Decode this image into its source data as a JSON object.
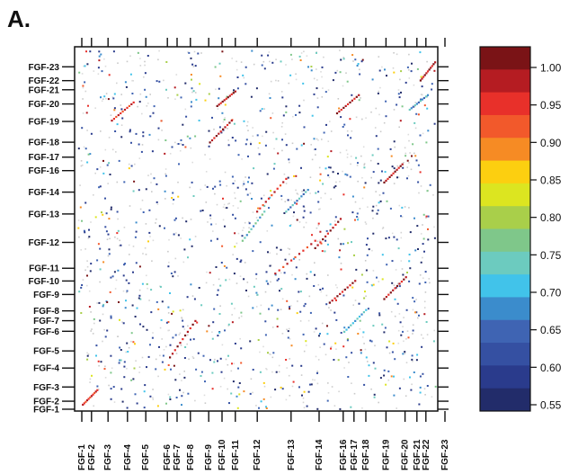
{
  "panel_label": "A.",
  "chart_data": {
    "type": "heatmap",
    "title": "",
    "xlabel": "",
    "ylabel": "",
    "x_tick_labels": [
      {
        "label": "FGF-1",
        "pos": 0.02
      },
      {
        "label": "FGF-2",
        "pos": 0.047
      },
      {
        "label": "FGF-3",
        "pos": 0.093
      },
      {
        "label": "FGF-4",
        "pos": 0.147
      },
      {
        "label": "FGF-5",
        "pos": 0.198
      },
      {
        "label": "FGF-6",
        "pos": 0.258
      },
      {
        "label": "FGF-7",
        "pos": 0.285
      },
      {
        "label": "FGF-8",
        "pos": 0.322
      },
      {
        "label": "FGF-9",
        "pos": 0.373
      },
      {
        "label": "FGF-10",
        "pos": 0.41
      },
      {
        "label": "FGF-11",
        "pos": 0.447
      },
      {
        "label": "FGF-12",
        "pos": 0.508
      },
      {
        "label": "FGF-13",
        "pos": 0.602
      },
      {
        "label": "FGF-14",
        "pos": 0.68
      },
      {
        "label": "FGF-16",
        "pos": 0.747
      },
      {
        "label": "FGF-17",
        "pos": 0.777
      },
      {
        "label": "FGF-18",
        "pos": 0.81
      },
      {
        "label": "FGF-19",
        "pos": 0.866
      },
      {
        "label": "FGF-20",
        "pos": 0.919
      },
      {
        "label": "FGF-21",
        "pos": 0.952
      },
      {
        "label": "FGF-22",
        "pos": 0.977
      },
      {
        "label": "FGF-23",
        "pos": 1.03
      }
    ],
    "y_tick_labels": [
      {
        "label": "FGF-23",
        "pos": 0.945
      },
      {
        "label": "FGF-22",
        "pos": 0.907
      },
      {
        "label": "FGF-21",
        "pos": 0.882
      },
      {
        "label": "FGF-20",
        "pos": 0.843
      },
      {
        "label": "FGF-19",
        "pos": 0.795
      },
      {
        "label": "FGF-18",
        "pos": 0.738
      },
      {
        "label": "FGF-17",
        "pos": 0.697
      },
      {
        "label": "FGF-16",
        "pos": 0.66
      },
      {
        "label": "FGF-14",
        "pos": 0.601
      },
      {
        "label": "FGF-13",
        "pos": 0.541
      },
      {
        "label": "FGF-12",
        "pos": 0.463
      },
      {
        "label": "FGF-11",
        "pos": 0.392
      },
      {
        "label": "FGF-10",
        "pos": 0.357
      },
      {
        "label": "FGF-9",
        "pos": 0.32
      },
      {
        "label": "FGF-8",
        "pos": 0.275
      },
      {
        "label": "FGF-7",
        "pos": 0.248
      },
      {
        "label": "FGF-6",
        "pos": 0.219
      },
      {
        "label": "FGF-5",
        "pos": 0.165
      },
      {
        "label": "FGF-4",
        "pos": 0.118
      },
      {
        "label": "FGF-3",
        "pos": 0.066
      },
      {
        "label": "FGF-2",
        "pos": 0.027
      },
      {
        "label": "FGF-1",
        "pos": 0.005
      }
    ],
    "colorbar": {
      "min": 0.55,
      "max": 1.0,
      "ticks": [
        "1.00",
        "0.95",
        "0.90",
        "0.85",
        "0.80",
        "0.75",
        "0.70",
        "0.65",
        "0.60",
        "0.55"
      ],
      "colors": [
        "#7a1316",
        "#b51c22",
        "#e8302a",
        "#f2592b",
        "#f68b24",
        "#fccf10",
        "#dce520",
        "#a9cf4a",
        "#7fc78a",
        "#6ccbbf",
        "#41c3ea",
        "#3b8ccc",
        "#3f64b3",
        "#3550a2",
        "#2a3b8c",
        "#222c6a"
      ]
    },
    "diagonal_segments": [
      {
        "x0": 0.26,
        "y0": 0.15,
        "x1": 0.33,
        "y1": 0.25,
        "value": 0.98
      },
      {
        "x0": 0.37,
        "y0": 0.74,
        "x1": 0.43,
        "y1": 0.8,
        "value": 0.98
      },
      {
        "x0": 0.39,
        "y0": 0.84,
        "x1": 0.44,
        "y1": 0.88,
        "value": 0.99
      },
      {
        "x0": 0.46,
        "y0": 0.47,
        "x1": 0.52,
        "y1": 0.55,
        "value": 0.75
      },
      {
        "x0": 0.5,
        "y0": 0.55,
        "x1": 0.58,
        "y1": 0.64,
        "value": 0.97
      },
      {
        "x0": 0.55,
        "y0": 0.38,
        "x1": 0.66,
        "y1": 0.47,
        "value": 0.96
      },
      {
        "x0": 0.58,
        "y0": 0.55,
        "x1": 0.64,
        "y1": 0.61,
        "value": 0.72
      },
      {
        "x0": 0.66,
        "y0": 0.45,
        "x1": 0.73,
        "y1": 0.53,
        "value": 0.98
      },
      {
        "x0": 0.7,
        "y0": 0.3,
        "x1": 0.77,
        "y1": 0.36,
        "value": 0.98
      },
      {
        "x0": 0.72,
        "y0": 0.82,
        "x1": 0.78,
        "y1": 0.87,
        "value": 0.98
      },
      {
        "x0": 0.74,
        "y0": 0.22,
        "x1": 0.8,
        "y1": 0.28,
        "value": 0.74
      },
      {
        "x0": 0.85,
        "y0": 0.31,
        "x1": 0.91,
        "y1": 0.37,
        "value": 0.99
      },
      {
        "x0": 0.85,
        "y0": 0.63,
        "x1": 0.9,
        "y1": 0.68,
        "value": 0.99
      },
      {
        "x0": 0.92,
        "y0": 0.83,
        "x1": 0.97,
        "y1": 0.87,
        "value": 0.72
      },
      {
        "x0": 0.95,
        "y0": 0.91,
        "x1": 0.99,
        "y1": 0.96,
        "value": 0.99
      },
      {
        "x0": 0.1,
        "y0": 0.8,
        "x1": 0.16,
        "y1": 0.85,
        "value": 0.97
      },
      {
        "x0": 0.02,
        "y0": 0.02,
        "x1": 0.06,
        "y1": 0.06,
        "value": 0.95
      }
    ]
  }
}
